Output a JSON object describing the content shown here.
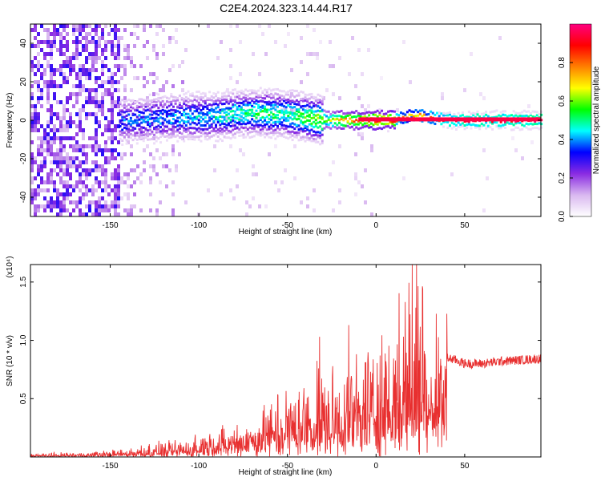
{
  "title": "C2E4.2024.323.14.44.R17",
  "chart_data": [
    {
      "type": "heatmap",
      "xlabel": "Height of straight line (km)",
      "ylabel": "Frequency (Hz)",
      "xlim": [
        -195,
        93
      ],
      "ylim": [
        -50,
        50
      ],
      "xticks": [
        -150,
        -100,
        -50,
        0,
        50
      ],
      "yticks": [
        -40,
        -20,
        0,
        20,
        40
      ],
      "colorbar": {
        "label": "Normalized spectral amplitude",
        "range": [
          0,
          1
        ],
        "ticks": [
          0.0,
          0.2,
          0.4,
          0.6,
          0.8
        ],
        "colors": [
          "#ffffff",
          "#d9b8f0",
          "#8a2be2",
          "#0000ff",
          "#00ffff",
          "#00ff00",
          "#ffff00",
          "#ff8000",
          "#ff0000",
          "#ff0080"
        ]
      },
      "ridge": [
        {
          "x": -140,
          "freq": 0,
          "amp": 0.35
        },
        {
          "x": -110,
          "freq": 2,
          "amp": 0.4
        },
        {
          "x": -90,
          "freq": 2,
          "amp": 0.45
        },
        {
          "x": -70,
          "freq": 4,
          "amp": 0.5
        },
        {
          "x": -50,
          "freq": 3,
          "amp": 0.5
        },
        {
          "x": -30,
          "freq": 0,
          "amp": 0.6
        },
        {
          "x": -10,
          "freq": 0,
          "amp": 0.8
        },
        {
          "x": 10,
          "freq": 0,
          "amp": 0.85
        },
        {
          "x": 20,
          "freq": 3,
          "amp": 0.7
        },
        {
          "x": 40,
          "freq": 0,
          "amp": 0.9
        },
        {
          "x": 90,
          "freq": 0,
          "amp": 0.95
        }
      ]
    },
    {
      "type": "line",
      "xlabel": "Height of straight line (km)",
      "ylabel": "SNR (10 * v/v)",
      "yscale_label": "(x10⁴)",
      "xlim": [
        -195,
        93
      ],
      "ylim": [
        0,
        1.65
      ],
      "xticks": [
        -150,
        -100,
        -50,
        0,
        50
      ],
      "yticks": [
        0.5,
        1.0,
        1.5
      ],
      "ytick_labels": [
        "0.5",
        "1.0",
        "1.5"
      ],
      "series": [
        {
          "color": "#e83030",
          "x": [
            -195,
            -160,
            -140,
            -130,
            -120,
            -110,
            -100,
            -90,
            -80,
            -70,
            -60,
            -50,
            -40,
            -35,
            -30,
            -25,
            -20,
            -15,
            -10,
            -5,
            0,
            5,
            10,
            15,
            20,
            22,
            25,
            30,
            35,
            40,
            45,
            50,
            60,
            70,
            80,
            90,
            93
          ],
          "values": [
            0.02,
            0.03,
            0.05,
            0.07,
            0.08,
            0.1,
            0.13,
            0.17,
            0.2,
            0.25,
            0.32,
            0.4,
            0.45,
            0.5,
            0.58,
            0.5,
            0.55,
            0.6,
            0.62,
            0.7,
            0.72,
            0.75,
            0.8,
            0.95,
            1.1,
            1.6,
            1.2,
            1.0,
            0.9,
            0.85,
            0.83,
            0.8,
            0.8,
            0.82,
            0.83,
            0.84,
            0.84
          ]
        }
      ]
    }
  ]
}
